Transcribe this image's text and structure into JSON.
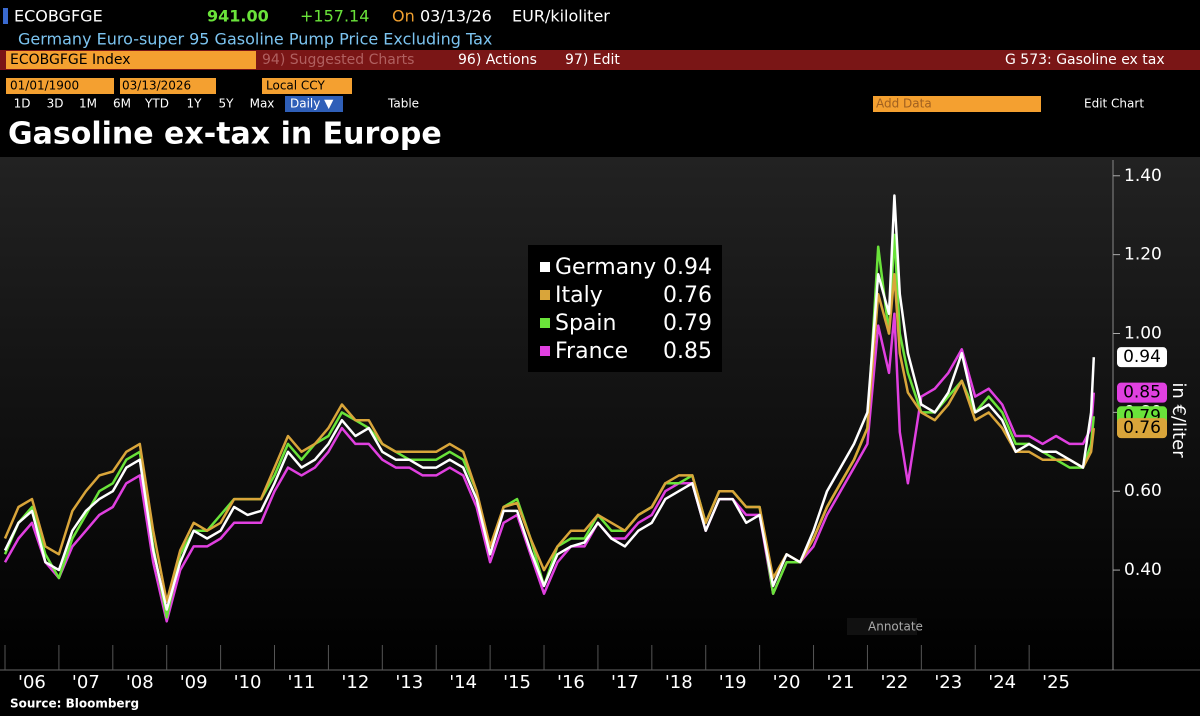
{
  "header": {
    "ticker": "ECOBGFGE",
    "price": "941.00",
    "change": "+157.14",
    "on": "On",
    "date": "03/13/26",
    "units": "EUR/kiloliter",
    "description": "Germany Euro-super 95 Gasoline Pump Price Excluding Tax"
  },
  "toolbar": {
    "security": "ECOBGFGE Index",
    "suggested": "94) Suggested Charts",
    "actions": "96) Actions",
    "edit": "97) Edit",
    "chart_id": "G 573: Gasoline ex tax",
    "start_date": "01/01/1900",
    "end_date": "03/13/2026",
    "currency": "Local CCY",
    "ranges": [
      "1D",
      "3D",
      "1M",
      "6M",
      "YTD",
      "1Y",
      "5Y",
      "Max"
    ],
    "frequency": "Daily ▼",
    "table": "Table",
    "add_data": "Add Data",
    "edit_chart": "Edit Chart"
  },
  "chart_data": {
    "type": "line",
    "title": "Gasoline ex-tax in Europe",
    "y_label": "in €/liter",
    "annotate": "Annotate",
    "source": "Source: Bloomberg",
    "x": [
      2006,
      2006.25,
      2006.5,
      2006.75,
      2007,
      2007.25,
      2007.5,
      2007.75,
      2008,
      2008.25,
      2008.5,
      2008.75,
      2009,
      2009.25,
      2009.5,
      2009.75,
      2010,
      2010.25,
      2010.5,
      2010.75,
      2011,
      2011.25,
      2011.5,
      2011.75,
      2012,
      2012.25,
      2012.5,
      2012.75,
      2013,
      2013.25,
      2013.5,
      2013.75,
      2014,
      2014.25,
      2014.5,
      2014.75,
      2015,
      2015.25,
      2015.5,
      2015.75,
      2016,
      2016.25,
      2016.5,
      2016.75,
      2017,
      2017.25,
      2017.5,
      2017.75,
      2018,
      2018.25,
      2018.5,
      2018.75,
      2019,
      2019.25,
      2019.5,
      2019.75,
      2020,
      2020.25,
      2020.5,
      2020.75,
      2021,
      2021.25,
      2021.5,
      2021.75,
      2022,
      2022.2,
      2022.4,
      2022.5,
      2022.6,
      2022.75,
      2023,
      2023.25,
      2023.5,
      2023.75,
      2024,
      2024.25,
      2024.5,
      2024.75,
      2025,
      2025.25,
      2025.5,
      2025.75,
      2026,
      2026.15,
      2026.2
    ],
    "series": [
      {
        "name": "Germany",
        "color": "#ffffff",
        "values": [
          0.45,
          0.52,
          0.55,
          0.42,
          0.4,
          0.5,
          0.55,
          0.58,
          0.6,
          0.66,
          0.68,
          0.45,
          0.3,
          0.42,
          0.5,
          0.48,
          0.5,
          0.56,
          0.54,
          0.55,
          0.62,
          0.7,
          0.66,
          0.68,
          0.72,
          0.78,
          0.74,
          0.76,
          0.7,
          0.68,
          0.68,
          0.66,
          0.66,
          0.68,
          0.66,
          0.58,
          0.44,
          0.55,
          0.55,
          0.45,
          0.36,
          0.44,
          0.46,
          0.47,
          0.52,
          0.48,
          0.46,
          0.5,
          0.52,
          0.58,
          0.6,
          0.62,
          0.5,
          0.58,
          0.58,
          0.52,
          0.54,
          0.36,
          0.44,
          0.42,
          0.5,
          0.6,
          0.66,
          0.72,
          0.8,
          1.15,
          1.05,
          1.35,
          1.1,
          0.95,
          0.82,
          0.8,
          0.85,
          0.95,
          0.8,
          0.82,
          0.78,
          0.7,
          0.72,
          0.7,
          0.7,
          0.68,
          0.66,
          0.8,
          0.94
        ]
      },
      {
        "name": "Italy",
        "color": "#d9a53a",
        "values": [
          0.48,
          0.56,
          0.58,
          0.46,
          0.44,
          0.55,
          0.6,
          0.64,
          0.65,
          0.7,
          0.72,
          0.5,
          0.32,
          0.45,
          0.52,
          0.5,
          0.52,
          0.58,
          0.58,
          0.58,
          0.66,
          0.74,
          0.7,
          0.72,
          0.76,
          0.82,
          0.78,
          0.78,
          0.72,
          0.7,
          0.7,
          0.7,
          0.7,
          0.72,
          0.7,
          0.6,
          0.46,
          0.56,
          0.57,
          0.48,
          0.4,
          0.46,
          0.5,
          0.5,
          0.54,
          0.52,
          0.5,
          0.54,
          0.56,
          0.62,
          0.64,
          0.64,
          0.52,
          0.6,
          0.6,
          0.56,
          0.56,
          0.38,
          0.44,
          0.42,
          0.48,
          0.56,
          0.62,
          0.68,
          0.76,
          1.1,
          1.0,
          1.15,
          0.95,
          0.85,
          0.8,
          0.78,
          0.82,
          0.88,
          0.78,
          0.8,
          0.76,
          0.7,
          0.7,
          0.68,
          0.68,
          0.68,
          0.66,
          0.7,
          0.76
        ]
      },
      {
        "name": "Spain",
        "color": "#6ae33a",
        "values": [
          0.44,
          0.52,
          0.56,
          0.44,
          0.38,
          0.48,
          0.54,
          0.6,
          0.62,
          0.68,
          0.7,
          0.46,
          0.28,
          0.44,
          0.5,
          0.5,
          0.54,
          0.58,
          0.58,
          0.58,
          0.64,
          0.72,
          0.68,
          0.72,
          0.74,
          0.8,
          0.78,
          0.76,
          0.72,
          0.7,
          0.68,
          0.68,
          0.68,
          0.7,
          0.68,
          0.6,
          0.44,
          0.56,
          0.58,
          0.48,
          0.36,
          0.46,
          0.48,
          0.48,
          0.54,
          0.5,
          0.5,
          0.54,
          0.56,
          0.62,
          0.62,
          0.64,
          0.52,
          0.6,
          0.6,
          0.56,
          0.56,
          0.34,
          0.42,
          0.42,
          0.48,
          0.56,
          0.62,
          0.68,
          0.76,
          1.22,
          1.0,
          1.25,
          1.0,
          0.9,
          0.8,
          0.8,
          0.84,
          0.88,
          0.8,
          0.84,
          0.8,
          0.72,
          0.72,
          0.7,
          0.68,
          0.66,
          0.66,
          0.72,
          0.79
        ]
      },
      {
        "name": "France",
        "color": "#e040e0",
        "values": [
          0.42,
          0.48,
          0.52,
          0.42,
          0.38,
          0.46,
          0.5,
          0.54,
          0.56,
          0.62,
          0.64,
          0.42,
          0.27,
          0.4,
          0.46,
          0.46,
          0.48,
          0.52,
          0.52,
          0.52,
          0.6,
          0.66,
          0.64,
          0.66,
          0.7,
          0.76,
          0.72,
          0.72,
          0.68,
          0.66,
          0.66,
          0.64,
          0.64,
          0.66,
          0.64,
          0.56,
          0.42,
          0.52,
          0.54,
          0.44,
          0.34,
          0.42,
          0.46,
          0.46,
          0.52,
          0.48,
          0.48,
          0.52,
          0.54,
          0.6,
          0.62,
          0.62,
          0.5,
          0.58,
          0.58,
          0.54,
          0.54,
          0.34,
          0.42,
          0.42,
          0.46,
          0.54,
          0.6,
          0.66,
          0.72,
          1.02,
          0.9,
          1.05,
          0.75,
          0.62,
          0.84,
          0.86,
          0.9,
          0.96,
          0.84,
          0.86,
          0.82,
          0.74,
          0.74,
          0.72,
          0.74,
          0.72,
          0.72,
          0.76,
          0.85
        ]
      }
    ],
    "xlim": [
      2006,
      2026.5
    ],
    "xticks": [
      {
        "value": 2006,
        "label": "'06"
      },
      {
        "value": 2007,
        "label": "'07"
      },
      {
        "value": 2008,
        "label": "'08"
      },
      {
        "value": 2009,
        "label": "'09"
      },
      {
        "value": 2010,
        "label": "'10"
      },
      {
        "value": 2011,
        "label": "'11"
      },
      {
        "value": 2012,
        "label": "'12"
      },
      {
        "value": 2013,
        "label": "'13"
      },
      {
        "value": 2014,
        "label": "'14"
      },
      {
        "value": 2015,
        "label": "'15"
      },
      {
        "value": 2016,
        "label": "'16"
      },
      {
        "value": 2017,
        "label": "'17"
      },
      {
        "value": 2018,
        "label": "'18"
      },
      {
        "value": 2019,
        "label": "'19"
      },
      {
        "value": 2020,
        "label": "'20"
      },
      {
        "value": 2021,
        "label": "'21"
      },
      {
        "value": 2022,
        "label": "'22"
      },
      {
        "value": 2023,
        "label": "'23"
      },
      {
        "value": 2024,
        "label": "'24"
      },
      {
        "value": 2025,
        "label": "'25"
      }
    ],
    "ylim": [
      0.21,
      1.44
    ],
    "yticks": [
      {
        "value": 0.4,
        "label": "0.40"
      },
      {
        "value": 0.6,
        "label": "0.60"
      },
      {
        "value": 0.8,
        "label": "0.80"
      },
      {
        "value": 1.0,
        "label": "1.00"
      },
      {
        "value": 1.2,
        "label": "1.20"
      },
      {
        "value": 1.4,
        "label": "1.40"
      }
    ],
    "legend": "top-center"
  }
}
